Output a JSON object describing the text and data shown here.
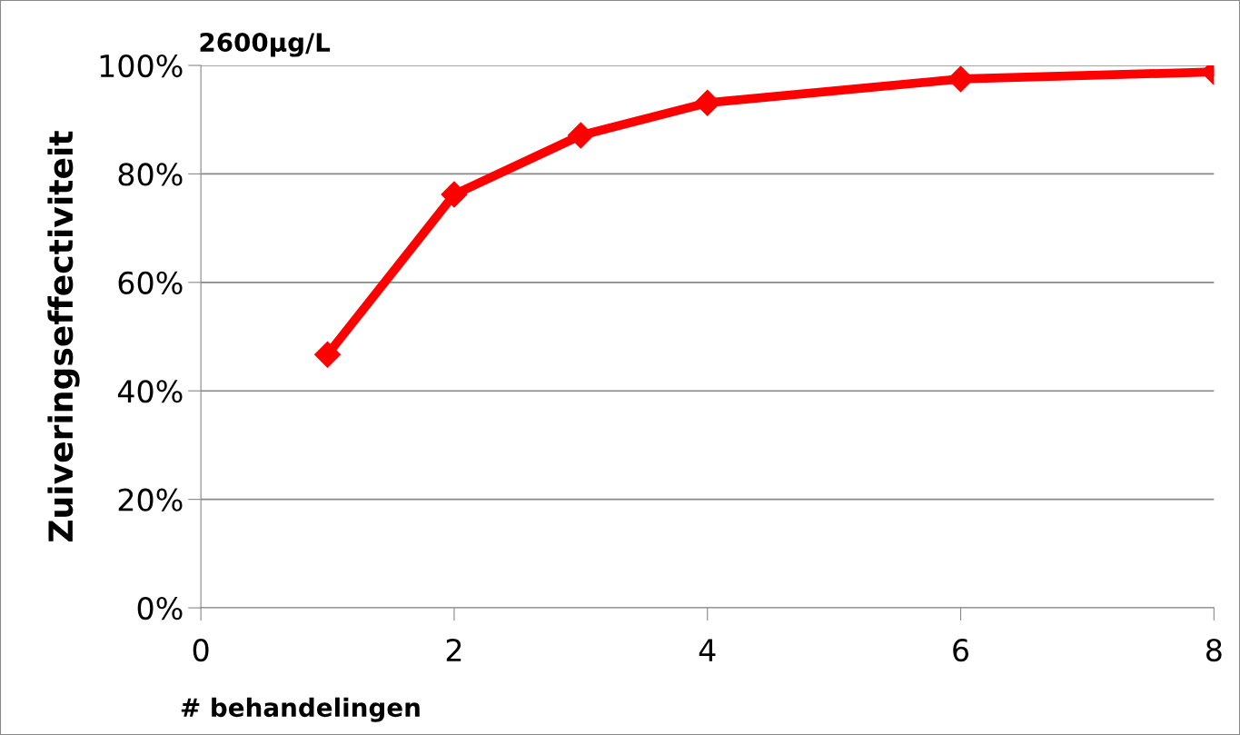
{
  "chart_data": {
    "type": "line",
    "title": "2600µg/L",
    "xlabel": "# behandelingen",
    "ylabel": "Zuiveringseffectiviteit",
    "x": [
      1,
      2,
      3,
      4,
      6,
      8
    ],
    "series": [
      {
        "color": "#ff0000",
        "values": [
          46.7,
          76.2,
          87.1,
          93.1,
          97.5,
          98.8
        ]
      }
    ],
    "xlim": [
      0,
      8
    ],
    "xticks": [
      0,
      2,
      4,
      6,
      8
    ],
    "ylim": [
      0,
      100
    ],
    "yticks": [
      {
        "value": 0,
        "label": "0%"
      },
      {
        "value": 20,
        "label": "20%"
      },
      {
        "value": 40,
        "label": "40%"
      },
      {
        "value": 60,
        "label": "60%"
      },
      {
        "value": 80,
        "label": "80%"
      },
      {
        "value": 100,
        "label": "100%"
      }
    ],
    "grid": "y",
    "marker": "diamond",
    "line_style": "solid",
    "legend": false
  }
}
